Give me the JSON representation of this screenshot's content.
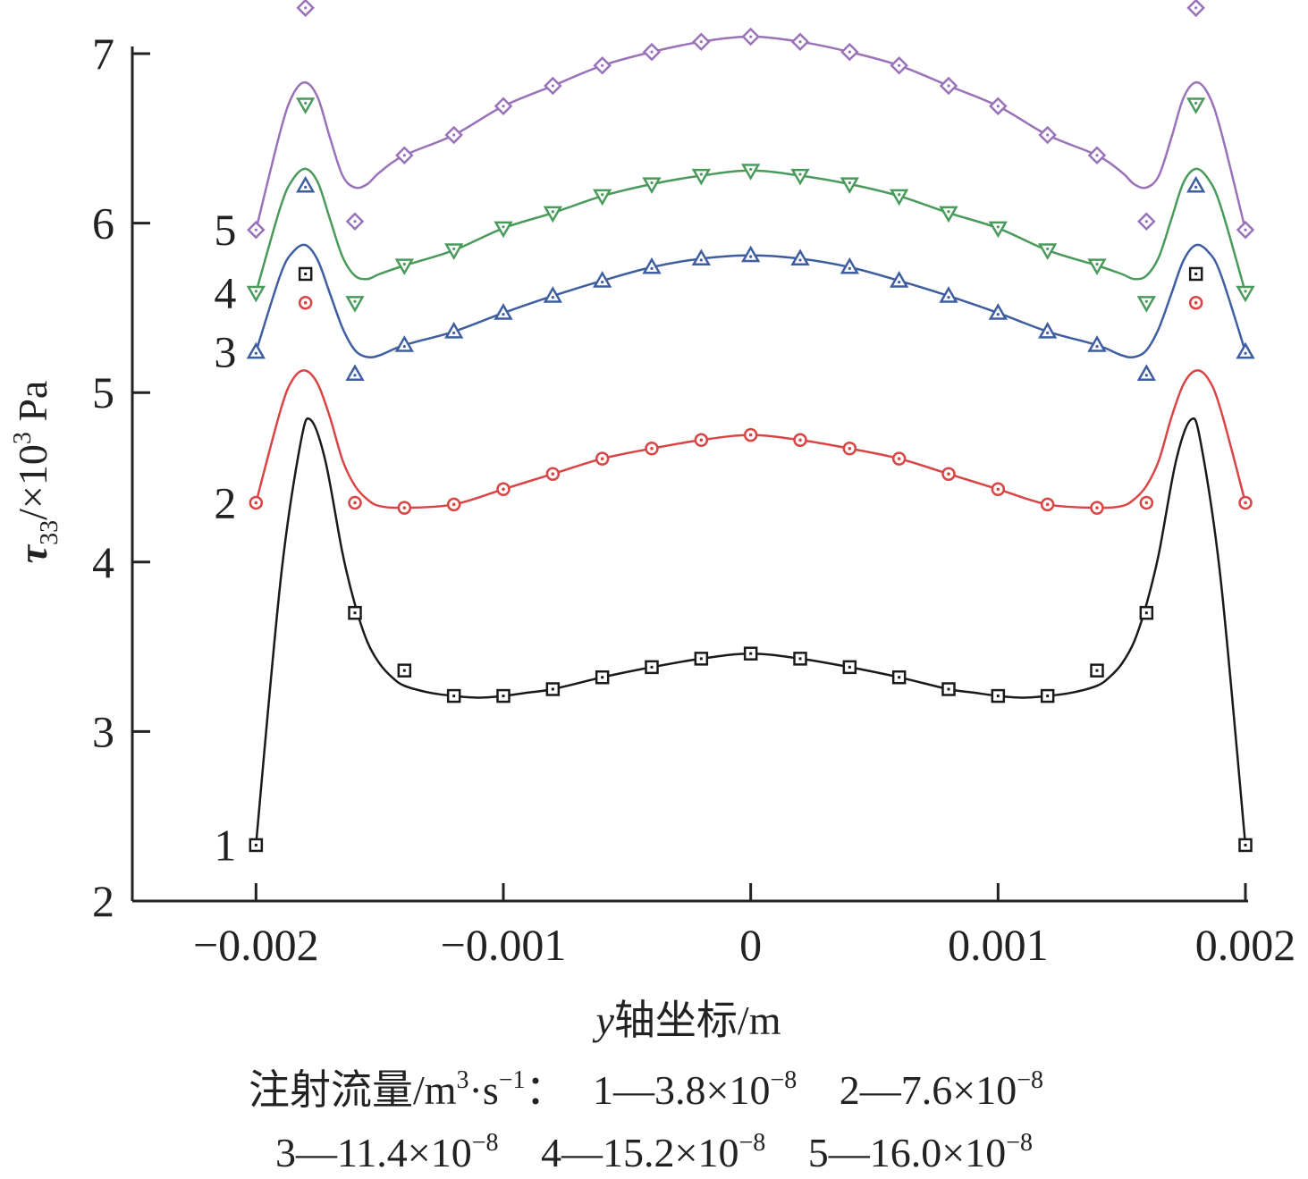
{
  "chart_data": {
    "type": "line",
    "xlabel_italic": "y",
    "xlabel_rest": "轴坐标/m",
    "ylabel": "τ33/×10³ Pa",
    "xlim": [
      -0.0025,
      0.002
    ],
    "ylim": [
      2,
      7
    ],
    "x_ticks": [
      -0.002,
      -0.001,
      0,
      0.001,
      0.002
    ],
    "x_tick_labels": [
      "−0.002",
      "−0.001",
      "0",
      "0.001",
      "0.002"
    ],
    "y_ticks": [
      2,
      3,
      4,
      5,
      6,
      7
    ],
    "y_tick_labels": [
      "2",
      "3",
      "4",
      "5",
      "6",
      "7"
    ],
    "grid": false,
    "x": [
      -0.002,
      -0.0018,
      -0.0016,
      -0.0014,
      -0.0012,
      -0.001,
      -0.0008,
      -0.0006,
      -0.0004,
      -0.0002,
      0,
      0.0002,
      0.0004,
      0.0006,
      0.0008,
      0.001,
      0.0012,
      0.0014,
      0.0016,
      0.0018,
      0.002
    ],
    "series": [
      {
        "name": "1",
        "color": "#1a1a1a",
        "marker": "square",
        "values": [
          2.33,
          5.7,
          3.7,
          3.36,
          3.21,
          3.21,
          3.25,
          3.32,
          3.38,
          3.43,
          3.46,
          3.43,
          3.38,
          3.32,
          3.25,
          3.21,
          3.21,
          3.36,
          3.7,
          5.7,
          2.33
        ],
        "curve_x": [
          -0.002,
          -0.0019,
          -0.00182,
          -0.00178,
          -0.00172,
          -0.00165,
          -0.0016,
          -0.00155,
          -0.0015,
          -0.00145,
          -0.0014,
          -0.0013,
          -0.0012,
          -0.0011,
          -0.001,
          -0.0009,
          -0.0008,
          -0.0006,
          -0.0004,
          -0.0002,
          0,
          0.0002,
          0.0004,
          0.0006,
          0.0008,
          0.0009,
          0.001,
          0.0011,
          0.0012,
          0.0013,
          0.0014,
          0.00145,
          0.0015,
          0.00155,
          0.0016,
          0.00165,
          0.00172,
          0.00178,
          0.00182,
          0.0019,
          0.002
        ],
        "curve_y": [
          2.33,
          3.9,
          4.7,
          4.84,
          4.6,
          4.05,
          3.75,
          3.53,
          3.4,
          3.32,
          3.27,
          3.23,
          3.21,
          3.2,
          3.21,
          3.23,
          3.25,
          3.32,
          3.38,
          3.43,
          3.46,
          3.43,
          3.38,
          3.32,
          3.25,
          3.23,
          3.21,
          3.2,
          3.21,
          3.23,
          3.27,
          3.32,
          3.4,
          3.53,
          3.75,
          4.05,
          4.6,
          4.84,
          4.7,
          3.9,
          2.33
        ]
      },
      {
        "name": "2",
        "color": "#d94545",
        "marker": "circle",
        "values": [
          4.35,
          5.53,
          4.35,
          4.32,
          4.34,
          4.43,
          4.52,
          4.61,
          4.67,
          4.72,
          4.75,
          4.72,
          4.67,
          4.61,
          4.52,
          4.43,
          4.34,
          4.32,
          4.35,
          5.53,
          4.35
        ],
        "curve_x": [
          -0.002,
          -0.0019,
          -0.00185,
          -0.0018,
          -0.00175,
          -0.0017,
          -0.00165,
          -0.0016,
          -0.00155,
          -0.0015,
          -0.0014,
          -0.0012,
          -0.001,
          -0.0008,
          -0.0006,
          -0.0004,
          -0.0002,
          0,
          0.0002,
          0.0004,
          0.0006,
          0.0008,
          0.001,
          0.0012,
          0.0014,
          0.0015,
          0.00155,
          0.0016,
          0.00165,
          0.0017,
          0.00175,
          0.0018,
          0.00185,
          0.0019,
          0.002
        ],
        "curve_y": [
          4.35,
          4.9,
          5.08,
          5.13,
          5.05,
          4.85,
          4.6,
          4.45,
          4.37,
          4.33,
          4.32,
          4.34,
          4.43,
          4.52,
          4.61,
          4.67,
          4.72,
          4.75,
          4.72,
          4.67,
          4.61,
          4.52,
          4.43,
          4.34,
          4.32,
          4.33,
          4.37,
          4.45,
          4.6,
          4.85,
          5.05,
          5.13,
          5.08,
          4.9,
          4.35
        ]
      },
      {
        "name": "3",
        "color": "#3f5ea0",
        "marker": "triangle-up",
        "values": [
          5.24,
          6.22,
          5.11,
          5.28,
          5.36,
          5.47,
          5.57,
          5.66,
          5.74,
          5.79,
          5.81,
          5.79,
          5.74,
          5.66,
          5.57,
          5.47,
          5.36,
          5.28,
          5.11,
          6.22,
          5.24
        ],
        "curve_x": [
          -0.002,
          -0.0019,
          -0.00185,
          -0.0018,
          -0.00175,
          -0.0017,
          -0.00165,
          -0.0016,
          -0.00155,
          -0.0015,
          -0.0014,
          -0.0012,
          -0.001,
          -0.0008,
          -0.0006,
          -0.0004,
          -0.0002,
          0,
          0.0002,
          0.0004,
          0.0006,
          0.0008,
          0.001,
          0.0012,
          0.0014,
          0.0015,
          0.00155,
          0.0016,
          0.00165,
          0.0017,
          0.00175,
          0.0018,
          0.00185,
          0.0019,
          0.002
        ],
        "curve_y": [
          5.24,
          5.7,
          5.83,
          5.87,
          5.78,
          5.58,
          5.38,
          5.25,
          5.21,
          5.22,
          5.28,
          5.36,
          5.47,
          5.57,
          5.66,
          5.74,
          5.79,
          5.81,
          5.79,
          5.74,
          5.66,
          5.57,
          5.47,
          5.36,
          5.28,
          5.22,
          5.21,
          5.25,
          5.38,
          5.58,
          5.78,
          5.87,
          5.83,
          5.7,
          5.24
        ]
      },
      {
        "name": "4",
        "color": "#4a9a5c",
        "marker": "triangle-down",
        "values": [
          5.59,
          6.7,
          5.53,
          5.75,
          5.84,
          5.97,
          6.06,
          6.16,
          6.23,
          6.28,
          6.31,
          6.28,
          6.23,
          6.16,
          6.06,
          5.97,
          5.84,
          5.75,
          5.53,
          6.7,
          5.59
        ],
        "curve_x": [
          -0.002,
          -0.0019,
          -0.00185,
          -0.0018,
          -0.00175,
          -0.0017,
          -0.00165,
          -0.0016,
          -0.00155,
          -0.0015,
          -0.0014,
          -0.0012,
          -0.001,
          -0.0008,
          -0.0006,
          -0.0004,
          -0.0002,
          0,
          0.0002,
          0.0004,
          0.0006,
          0.0008,
          0.001,
          0.0012,
          0.0014,
          0.0015,
          0.00155,
          0.0016,
          0.00165,
          0.0017,
          0.00175,
          0.0018,
          0.00185,
          0.0019,
          0.002
        ],
        "curve_y": [
          5.59,
          6.1,
          6.26,
          6.32,
          6.24,
          6.02,
          5.8,
          5.69,
          5.67,
          5.7,
          5.75,
          5.84,
          5.97,
          6.06,
          6.16,
          6.23,
          6.28,
          6.31,
          6.28,
          6.23,
          6.16,
          6.06,
          5.97,
          5.84,
          5.75,
          5.7,
          5.67,
          5.69,
          5.8,
          6.02,
          6.24,
          6.32,
          6.26,
          6.1,
          5.59
        ]
      },
      {
        "name": "5",
        "color": "#9a72b8",
        "marker": "diamond",
        "values": [
          5.96,
          7.27,
          6.01,
          6.4,
          6.52,
          6.69,
          6.81,
          6.93,
          7.01,
          7.07,
          7.1,
          7.07,
          7.01,
          6.93,
          6.81,
          6.69,
          6.52,
          6.4,
          6.01,
          7.27,
          5.96
        ],
        "curve_x": [
          -0.002,
          -0.0019,
          -0.00185,
          -0.0018,
          -0.00175,
          -0.0017,
          -0.00165,
          -0.0016,
          -0.00155,
          -0.0015,
          -0.0014,
          -0.0012,
          -0.001,
          -0.0008,
          -0.0006,
          -0.0004,
          -0.0002,
          0,
          0.0002,
          0.0004,
          0.0006,
          0.0008,
          0.001,
          0.0012,
          0.0014,
          0.0015,
          0.00155,
          0.0016,
          0.00165,
          0.0017,
          0.00175,
          0.0018,
          0.00185,
          0.0019,
          0.002
        ],
        "curve_y": [
          5.96,
          6.55,
          6.76,
          6.83,
          6.74,
          6.5,
          6.28,
          6.21,
          6.23,
          6.3,
          6.4,
          6.52,
          6.69,
          6.81,
          6.93,
          7.01,
          7.07,
          7.1,
          7.07,
          7.01,
          6.93,
          6.81,
          6.69,
          6.52,
          6.4,
          6.3,
          6.23,
          6.21,
          6.28,
          6.5,
          6.74,
          6.83,
          6.76,
          6.55,
          5.96
        ]
      }
    ],
    "curve_labels": [
      {
        "text": "1",
        "y": 2.33
      },
      {
        "text": "2",
        "y": 4.35
      },
      {
        "text": "3",
        "y": 5.24
      },
      {
        "text": "4",
        "y": 5.59
      },
      {
        "text": "5",
        "y": 5.96
      }
    ],
    "legend": {
      "placement": "bottom",
      "title": "注射流量/m",
      "title_sup1": "3",
      "title_mid": "·s",
      "title_sup2": "−1",
      "title_end": "：",
      "entries": [
        {
          "prefix": "1—3.8×10",
          "exp": "−8"
        },
        {
          "prefix": "2—7.6×10",
          "exp": "−8"
        },
        {
          "prefix": "3—11.4×10",
          "exp": "−8"
        },
        {
          "prefix": "4—15.2×10",
          "exp": "−8"
        },
        {
          "prefix": "5—16.0×10",
          "exp": "−8"
        }
      ]
    }
  }
}
